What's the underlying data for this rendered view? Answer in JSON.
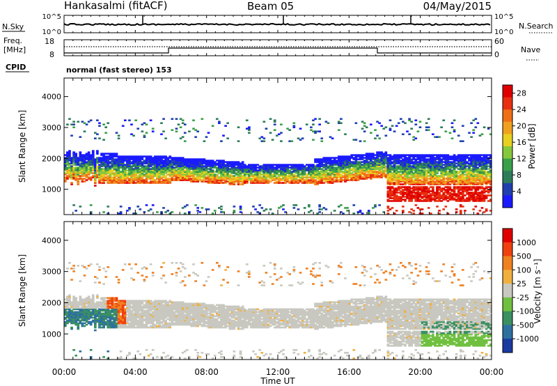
{
  "header": {
    "station": "Hankasalmi (fitACF)",
    "beam": "Beam 05",
    "date": "04/May/2015"
  },
  "top_panels": {
    "nsky_label": "N.Sky",
    "nsky_ticks": [
      "10^5",
      "10^0"
    ],
    "nsearch_label": "N.Search",
    "freq_label_line1": "Freq.",
    "freq_label_line2": "[MHz]",
    "freq_ticks": [
      "18",
      "8"
    ],
    "nave_label": "Nave",
    "nave_ticks": [
      "60",
      "0"
    ],
    "cpid_label": "CPID",
    "cpid_text": "normal (fast stereo) 153"
  },
  "chart_data": [
    {
      "type": "heatmap",
      "name": "power",
      "ylabel": "Slant Range [km]",
      "xlabel": "Time UT",
      "x_ticks": [
        "00:00",
        "04:00",
        "08:00",
        "12:00",
        "16:00",
        "20:00",
        "00:00"
      ],
      "x_range_hours": [
        0,
        24
      ],
      "y_ticks": [
        1000,
        2000,
        3000,
        4000
      ],
      "ylim": [
        180,
        4600
      ],
      "colorbar": {
        "label": "Power [dB]",
        "ticks": [
          "4",
          "8",
          "12",
          "16",
          "20",
          "24",
          "28"
        ],
        "colors": [
          "#1a1aff",
          "#2040b0",
          "#2e7d5a",
          "#3aa04a",
          "#86c83c",
          "#e8d020",
          "#f0a020",
          "#f07018",
          "#e83010",
          "#e00000"
        ]
      }
    },
    {
      "type": "heatmap",
      "name": "velocity",
      "ylabel": "Slant Range [km]",
      "xlabel": "Time UT",
      "x_ticks": [
        "00:00",
        "04:00",
        "08:00",
        "12:00",
        "16:00",
        "20:00",
        "00:00"
      ],
      "x_range_hours": [
        0,
        24
      ],
      "y_ticks": [
        1000,
        2000,
        3000,
        4000
      ],
      "ylim": [
        180,
        4600
      ],
      "colorbar": {
        "label": "Velocity [m s⁻¹]",
        "ticks": [
          "1000",
          "500",
          "100",
          "25",
          "-25",
          "-100",
          "-500",
          "-1000"
        ],
        "colors": [
          "#1a3aa0",
          "#2e70a0",
          "#3a9060",
          "#70c040",
          "#c8c8c0",
          "#f0b040",
          "#f08020",
          "#f04010",
          "#e00000"
        ]
      }
    }
  ]
}
